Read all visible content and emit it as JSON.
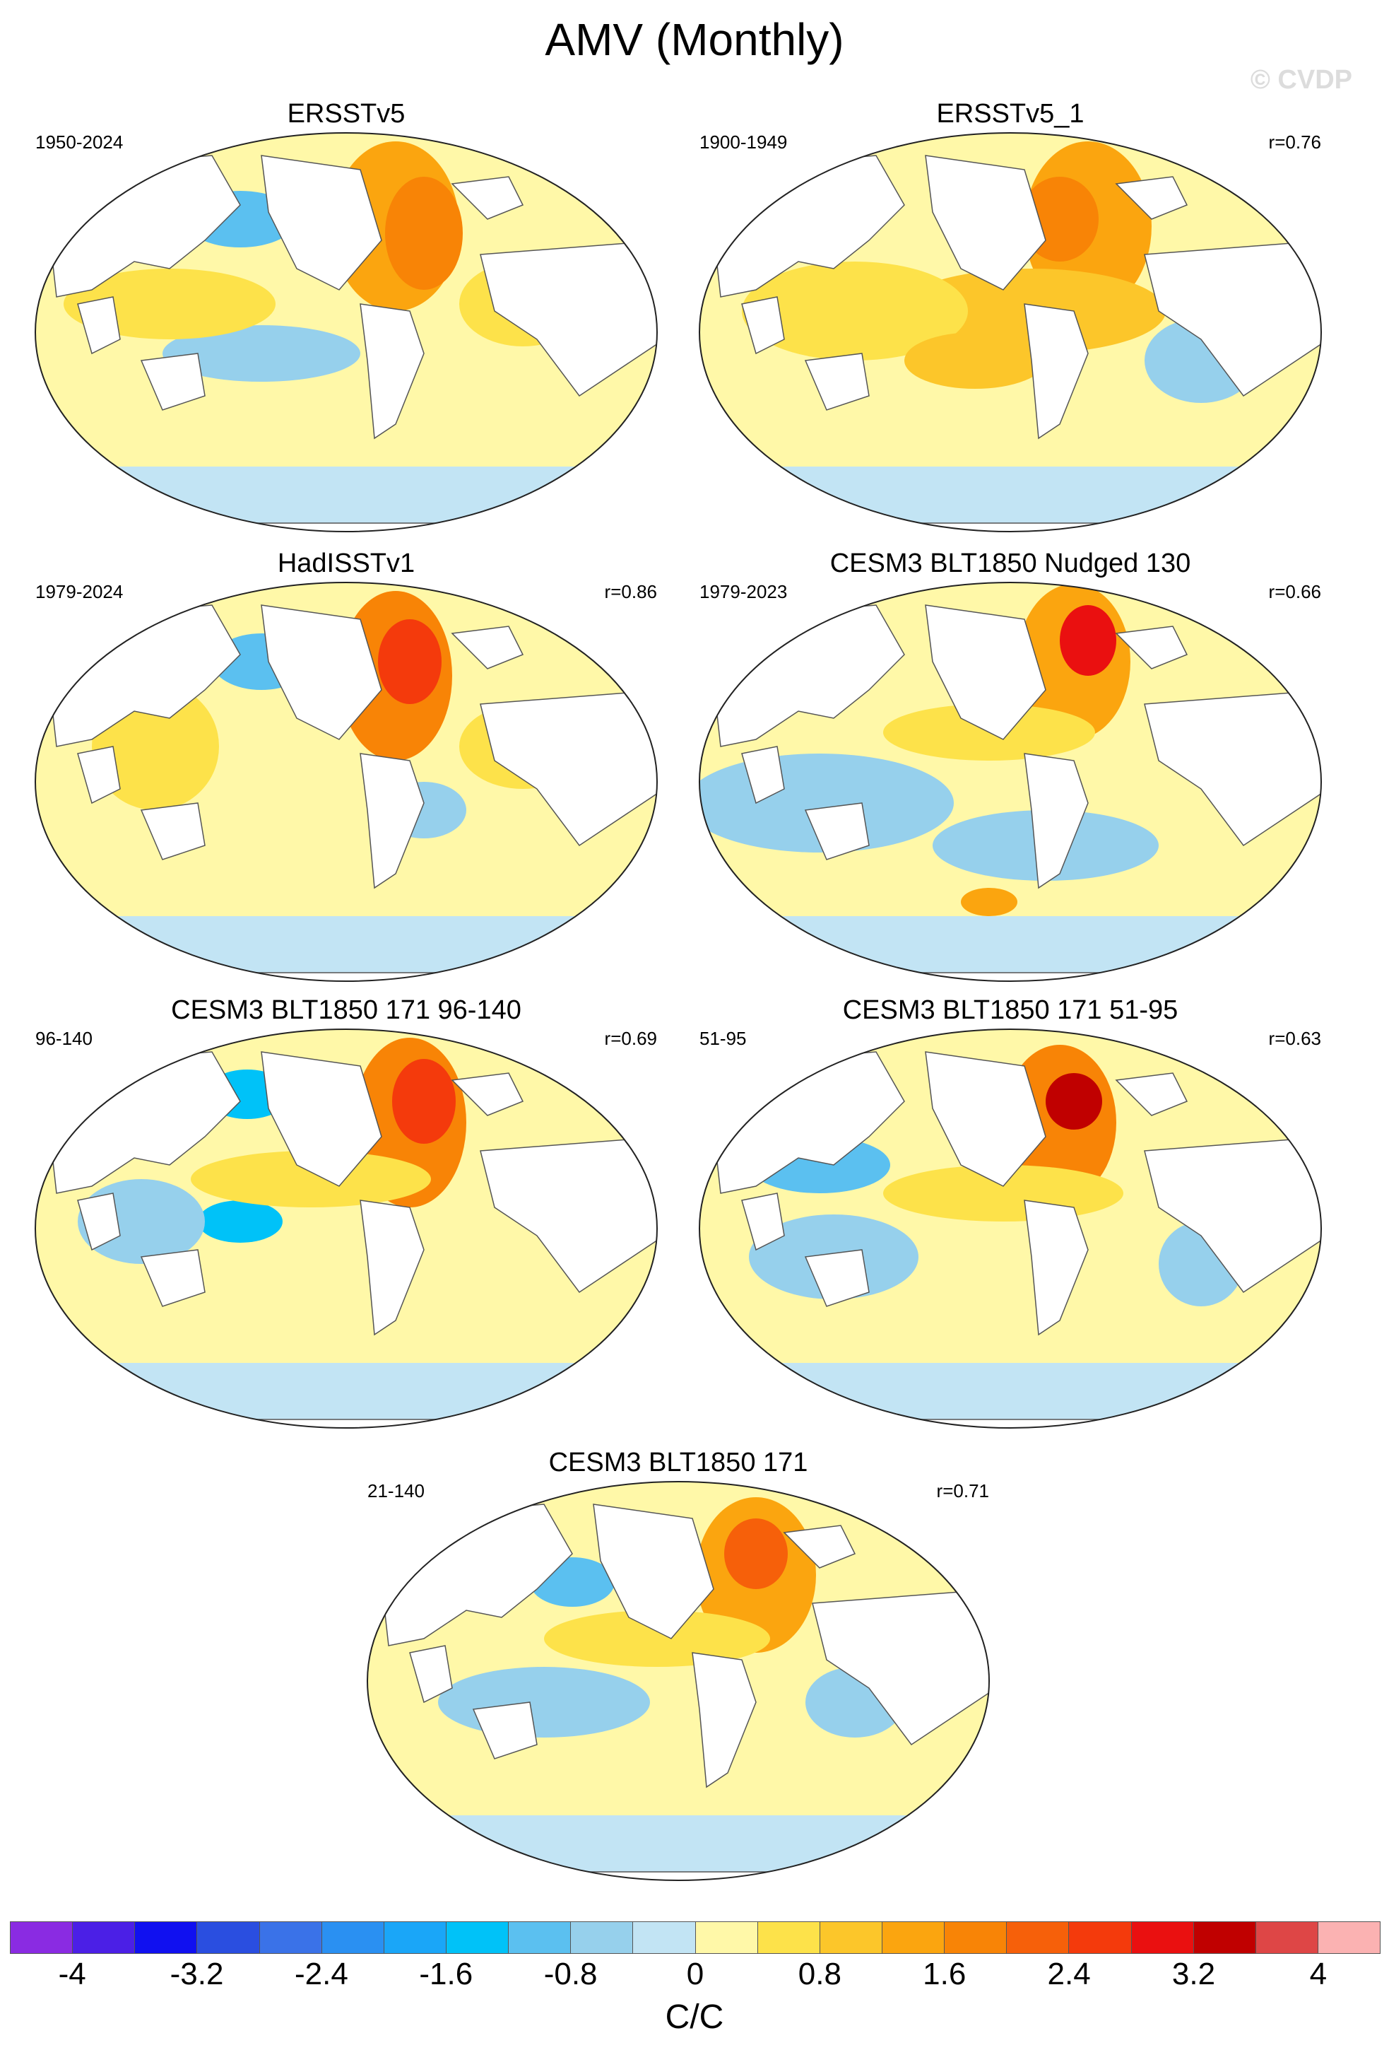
{
  "title": "AMV (Monthly)",
  "watermark": "© CVDP",
  "panels": [
    {
      "title": "ERSSTv5",
      "period": "1950-2024",
      "correlation": ""
    },
    {
      "title": "ERSSTv5_1",
      "period": "1900-1949",
      "correlation": "r=0.76"
    },
    {
      "title": "HadISSTv1",
      "period": "1979-2024",
      "correlation": "r=0.86"
    },
    {
      "title": "CESM3 BLT1850 Nudged 130",
      "period": "1979-2023",
      "correlation": "r=0.66"
    },
    {
      "title": "CESM3 BLT1850 171 96-140",
      "period": "96-140",
      "correlation": "r=0.69"
    },
    {
      "title": "CESM3 BLT1850 171 51-95",
      "period": "51-95",
      "correlation": "r=0.63"
    },
    {
      "title": "CESM3 BLT1850 171",
      "period": "21-140",
      "correlation": "r=0.71"
    }
  ],
  "colorbar": {
    "colors": [
      "#8a2be2",
      "#4b1fe6",
      "#1010f0",
      "#2a4ee0",
      "#3a72e8",
      "#2a90f2",
      "#1aa6f8",
      "#00c2f8",
      "#5bc0f0",
      "#96d0ec",
      "#c2e4f4",
      "#fff8a8",
      "#fde24a",
      "#fcc62a",
      "#fba50f",
      "#f88406",
      "#f6600a",
      "#f43a0c",
      "#ea1010",
      "#c00000",
      "#de4646",
      "#fbb2b2"
    ],
    "tick_labels": [
      "-4",
      "-3.2",
      "-2.4",
      "-1.6",
      "-0.8",
      "0",
      "0.8",
      "1.6",
      "2.4",
      "3.2",
      "4"
    ],
    "units": "C/C"
  }
}
